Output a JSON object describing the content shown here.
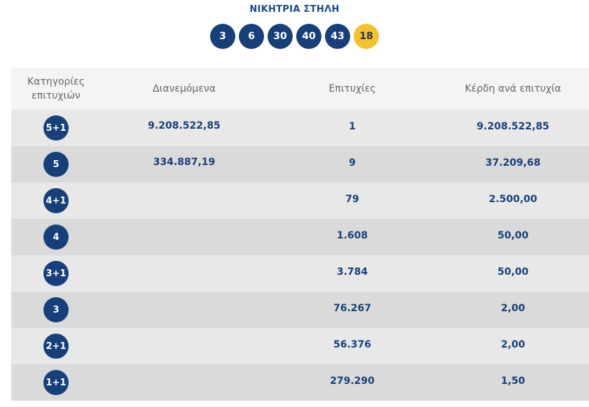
{
  "title": "ΝΙΚΗΤΡΙΑ ΣΤΗΛΗ",
  "winning_numbers": [
    "3",
    "6",
    "30",
    "40",
    "43"
  ],
  "bonus_number": "18",
  "colors": {
    "ball": "#17407b",
    "bonus": "#f5c22c",
    "text_accent": "#17407b"
  },
  "table": {
    "headers": {
      "category": "Κατηγορίες\nεπιτυχιών",
      "distributed": "Διανεμόμενα",
      "winners": "Επιτυχίες",
      "prize": "Κέρδη ανά επιτυχία"
    },
    "rows": [
      {
        "category": "5+1",
        "distributed": "9.208.522,85",
        "winners": "1",
        "prize": "9.208.522,85"
      },
      {
        "category": "5",
        "distributed": "334.887,19",
        "winners": "9",
        "prize": "37.209,68"
      },
      {
        "category": "4+1",
        "distributed": "",
        "winners": "79",
        "prize": "2.500,00"
      },
      {
        "category": "4",
        "distributed": "",
        "winners": "1.608",
        "prize": "50,00"
      },
      {
        "category": "3+1",
        "distributed": "",
        "winners": "3.784",
        "prize": "50,00"
      },
      {
        "category": "3",
        "distributed": "",
        "winners": "76.267",
        "prize": "2,00"
      },
      {
        "category": "2+1",
        "distributed": "",
        "winners": "56.376",
        "prize": "2,00"
      },
      {
        "category": "1+1",
        "distributed": "",
        "winners": "279.290",
        "prize": "1,50"
      }
    ]
  }
}
